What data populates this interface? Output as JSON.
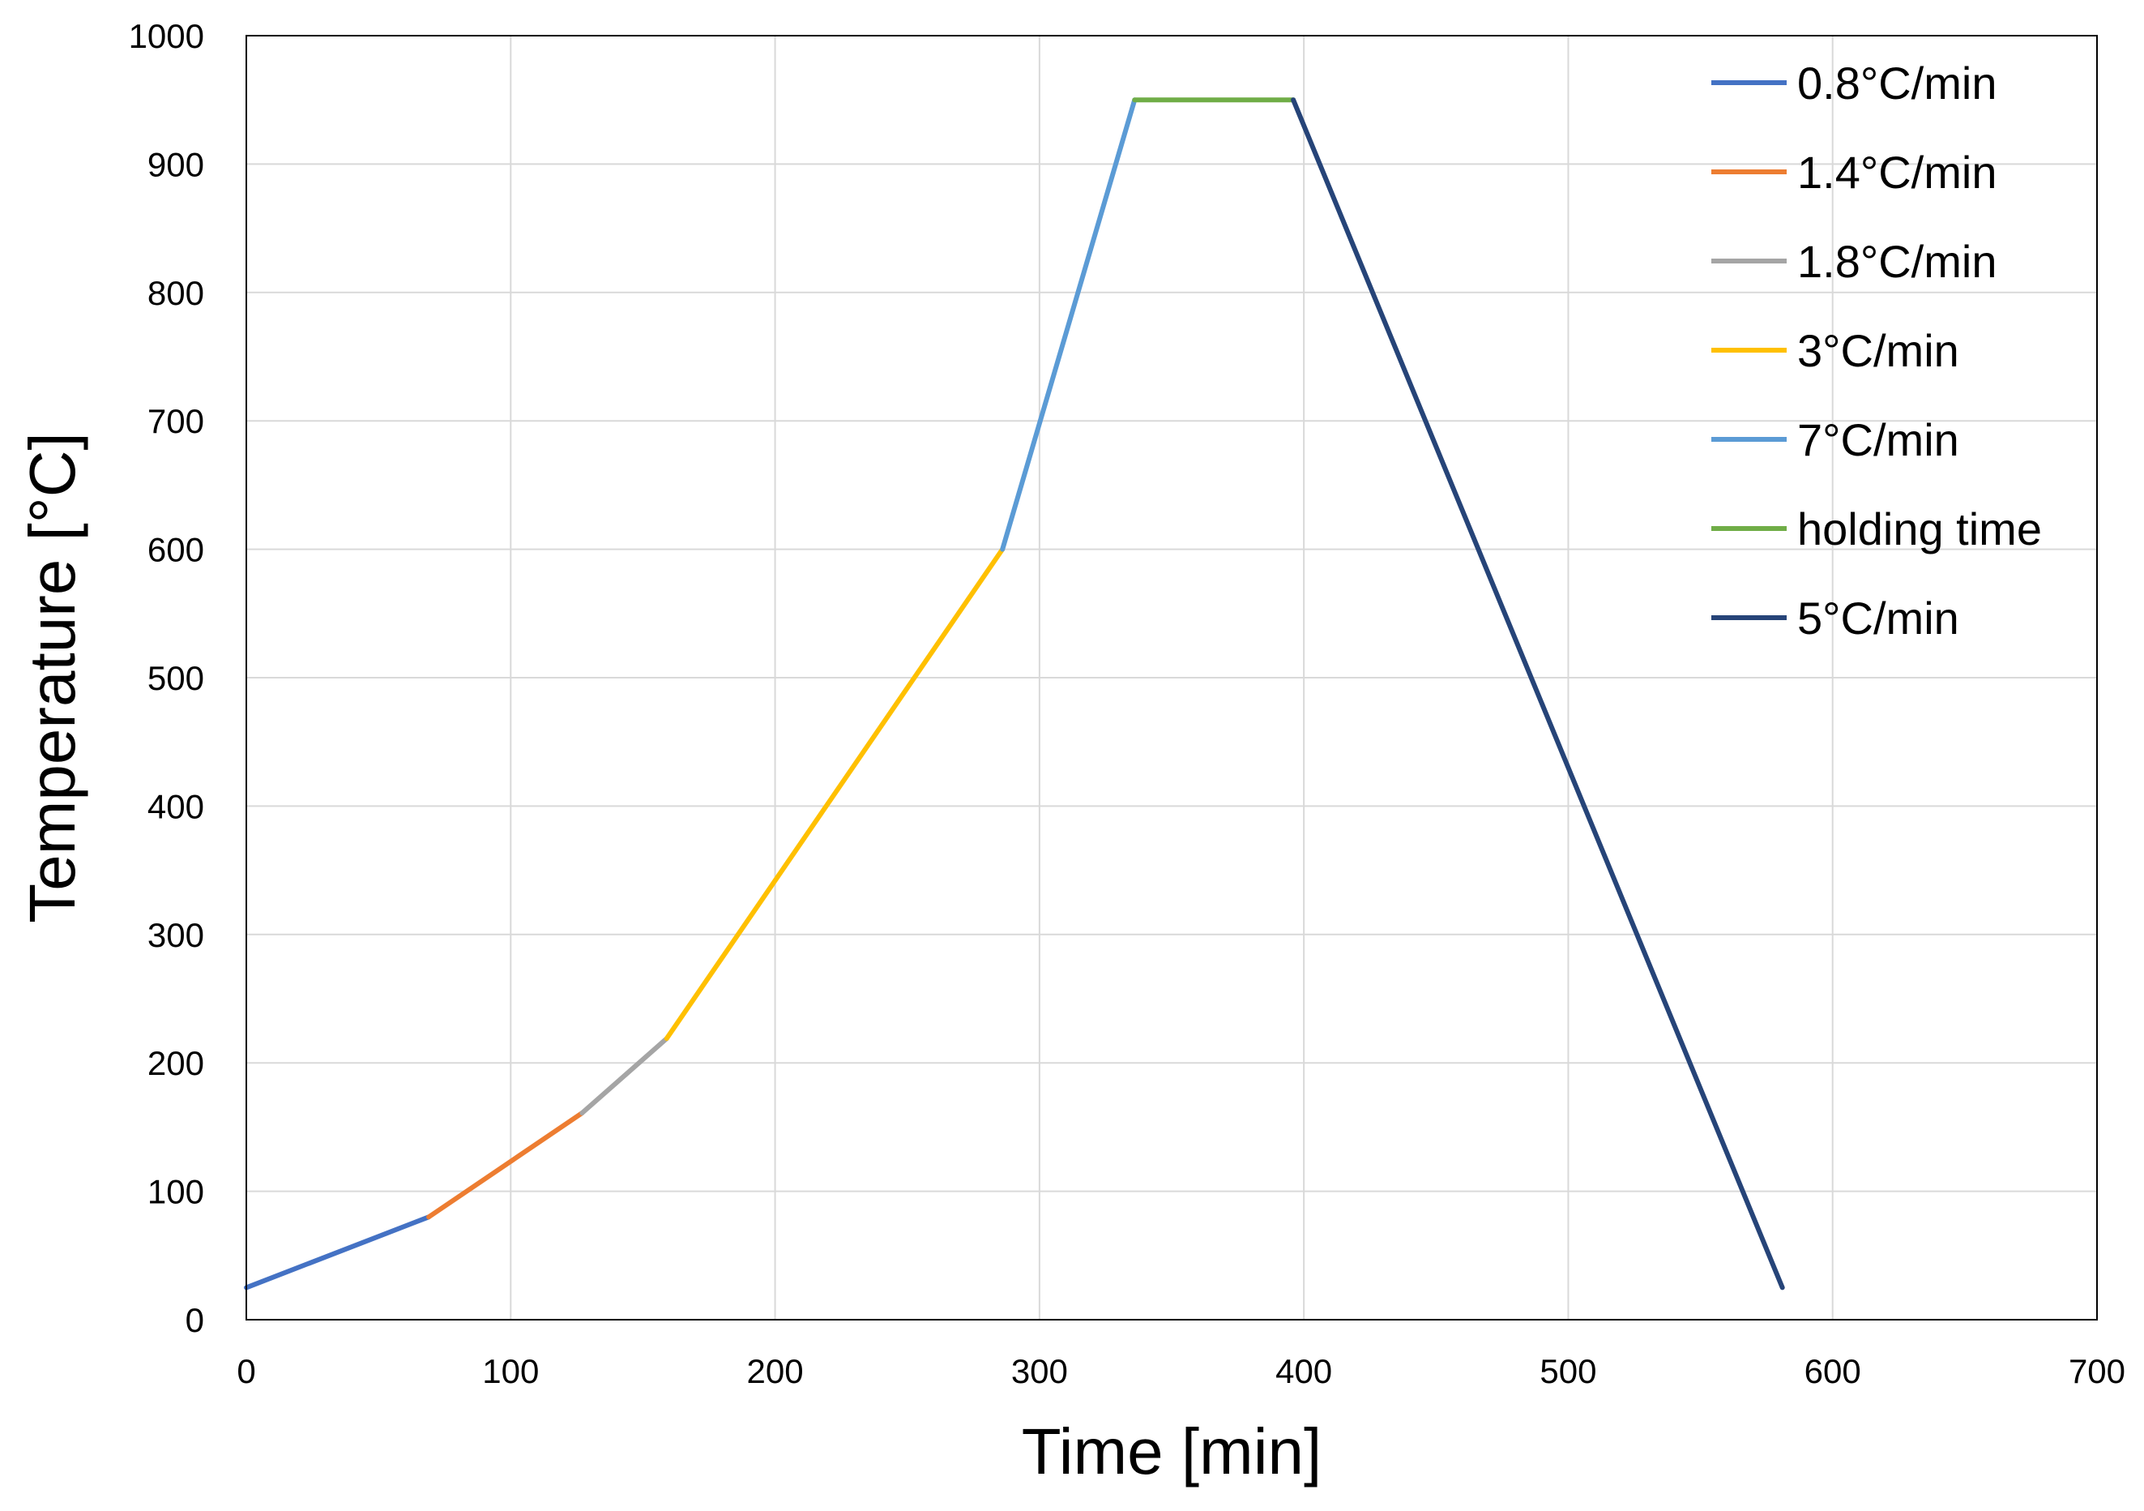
{
  "chart_data": {
    "type": "line",
    "title": "",
    "xlabel": "Time [min]",
    "ylabel": "Temperature [°C]",
    "xlim": [
      0,
      700
    ],
    "ylim": [
      0,
      1000
    ],
    "x_ticks": [
      "0",
      "100",
      "200",
      "300",
      "400",
      "500",
      "600",
      "700"
    ],
    "y_ticks": [
      "0",
      "100",
      "200",
      "300",
      "400",
      "500",
      "600",
      "700",
      "800",
      "900",
      "1000"
    ],
    "grid": true,
    "legend_position": "top-right",
    "series": [
      {
        "name": "0.8°C/min",
        "color": "#4472C4",
        "x": [
          0,
          69
        ],
        "y": [
          25,
          80
        ]
      },
      {
        "name": "1.4°C/min",
        "color": "#ED7D31",
        "x": [
          69,
          127
        ],
        "y": [
          80,
          161
        ]
      },
      {
        "name": "1.8°C/min",
        "color": "#A5A5A5",
        "x": [
          127,
          159
        ],
        "y": [
          161,
          219
        ]
      },
      {
        "name": "3°C/min",
        "color": "#FFC000",
        "x": [
          159,
          286
        ],
        "y": [
          219,
          600
        ]
      },
      {
        "name": "7°C/min",
        "color": "#5B9BD5",
        "x": [
          286,
          336
        ],
        "y": [
          600,
          950
        ]
      },
      {
        "name": "holding time",
        "color": "#70AD47",
        "x": [
          336,
          396
        ],
        "y": [
          950,
          950
        ]
      },
      {
        "name": "5°C/min",
        "color": "#264478",
        "x": [
          396,
          581
        ],
        "y": [
          950,
          25
        ]
      }
    ]
  }
}
